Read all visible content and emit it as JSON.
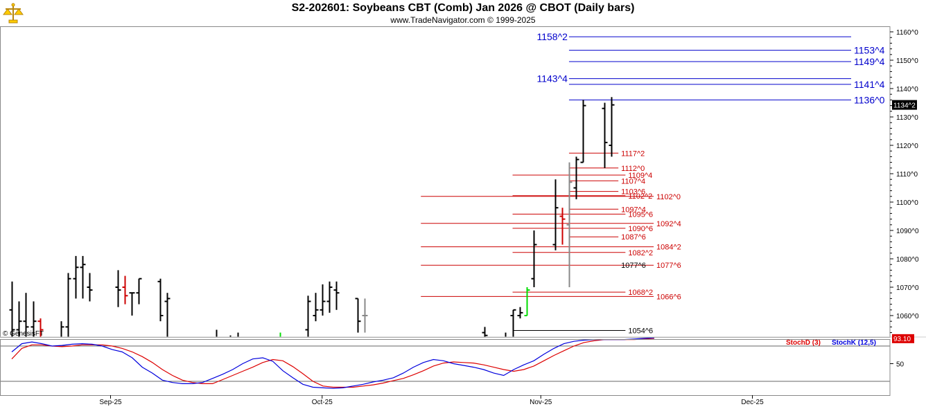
{
  "header": {
    "title": "S2-202601:  Soybeans CBT (Comb) Jan 2026 @ CBOT  (Daily bars)",
    "subtitle": "www.TradeNavigator.com © 1999-2025",
    "logo_icon": "trade-navigator-scales-logo"
  },
  "watermark": "© GenesisFT",
  "colors": {
    "blue_levels": "#0000cc",
    "red_levels": "#cc0000",
    "black_bars": "#000000",
    "up_bar_green": "#00dd00",
    "stoch_d": "#dd0000",
    "stoch_k": "#0000dd",
    "last_price_bg": "#000000",
    "stoch_value_bg": "#dd0000"
  },
  "chart_data": [
    {
      "type": "bar",
      "subtype": "ohlc",
      "title": "S2-202601:  Soybeans CBT (Comb) Jan 2026 @ CBOT  (Daily bars)",
      "ylim": [
        1050,
        1162
      ],
      "y_ticks": [
        "1160^0",
        "1150^0",
        "1140^0",
        "1130^0",
        "1120^0",
        "1110^0",
        "1100^0",
        "1090^0",
        "1080^0",
        "1070^0",
        "1060^0"
      ],
      "x_ticks": [
        "Sep-25",
        "Oct-25",
        "Nov-25",
        "Dec-25"
      ],
      "last_price_label": "1134^2",
      "last_price": 1134.25,
      "bars": [
        {
          "d": "2025-08-18",
          "o": 1062,
          "h": 1072,
          "l": 1049,
          "c": 1055,
          "col": "k"
        },
        {
          "d": "2025-08-19",
          "o": 1055,
          "h": 1065,
          "l": 1048,
          "c": 1058,
          "col": "k"
        },
        {
          "d": "2025-08-20",
          "o": 1058,
          "h": 1068,
          "l": 1050,
          "c": 1056,
          "col": "k"
        },
        {
          "d": "2025-08-21",
          "o": 1056,
          "h": 1065,
          "l": 1046,
          "c": 1058,
          "col": "k"
        },
        {
          "d": "2025-08-22",
          "o": 1058,
          "h": 1059,
          "l": 1050,
          "c": 1055,
          "col": "r"
        },
        {
          "d": "2025-08-25",
          "o": 1050,
          "h": 1058,
          "l": 1045,
          "c": 1056,
          "col": "k"
        },
        {
          "d": "2025-08-26",
          "o": 1056,
          "h": 1075,
          "l": 1050,
          "c": 1073,
          "col": "k"
        },
        {
          "d": "2025-08-27",
          "o": 1073,
          "h": 1081,
          "l": 1066,
          "c": 1077,
          "col": "k"
        },
        {
          "d": "2025-08-28",
          "o": 1077,
          "h": 1081,
          "l": 1066,
          "c": 1078,
          "col": "k"
        },
        {
          "d": "2025-08-29",
          "o": 1070,
          "h": 1075,
          "l": 1065,
          "c": 1069,
          "col": "k"
        },
        {
          "d": "2025-09-02",
          "o": 1070,
          "h": 1076,
          "l": 1063,
          "c": 1069,
          "col": "k"
        },
        {
          "d": "2025-09-03",
          "o": 1070,
          "h": 1074,
          "l": 1064,
          "c": 1067,
          "col": "r"
        },
        {
          "d": "2025-09-04",
          "o": 1068,
          "h": 1068,
          "l": 1060,
          "c": 1068,
          "col": "k"
        },
        {
          "d": "2025-09-05",
          "o": 1068,
          "h": 1073,
          "l": 1064,
          "c": 1073,
          "col": "k"
        },
        {
          "d": "2025-09-08",
          "o": 1072,
          "h": 1073,
          "l": 1058,
          "c": 1060,
          "col": "k"
        },
        {
          "d": "2025-09-09",
          "o": 1065,
          "h": 1068,
          "l": 1040,
          "c": 1066,
          "col": "k"
        },
        {
          "d": "2025-09-16",
          "o": 1052,
          "h": 1055,
          "l": 1045,
          "c": 1048,
          "col": "k"
        },
        {
          "d": "2025-09-18",
          "o": 1050,
          "h": 1053,
          "l": 1045,
          "c": 1049,
          "col": "k"
        },
        {
          "d": "2025-09-19",
          "o": 1051,
          "h": 1054,
          "l": 1046,
          "c": 1052,
          "col": "k"
        },
        {
          "d": "2025-09-25",
          "o": 1050,
          "h": 1054,
          "l": 1045,
          "c": 1052,
          "col": "g"
        },
        {
          "d": "2025-09-26",
          "o": 1051,
          "h": 1052,
          "l": 1040,
          "c": 1051,
          "col": "k"
        },
        {
          "d": "2025-09-29",
          "o": 1055,
          "h": 1067,
          "l": 1050,
          "c": 1065,
          "col": "k"
        },
        {
          "d": "2025-09-30",
          "o": 1060,
          "h": 1068,
          "l": 1058,
          "c": 1062,
          "col": "k"
        },
        {
          "d": "2025-10-01",
          "o": 1062,
          "h": 1071,
          "l": 1060,
          "c": 1065,
          "col": "k"
        },
        {
          "d": "2025-10-02",
          "o": 1065,
          "h": 1072,
          "l": 1061,
          "c": 1070,
          "col": "k"
        },
        {
          "d": "2025-10-03",
          "o": 1069,
          "h": 1072,
          "l": 1062,
          "c": 1068,
          "col": "k"
        },
        {
          "d": "2025-10-06",
          "o": 1066,
          "h": 1066,
          "l": 1054,
          "c": 1058,
          "col": "k"
        },
        {
          "d": "2025-10-07",
          "o": 1060,
          "h": 1066,
          "l": 1054,
          "c": 1060,
          "col": "x"
        },
        {
          "d": "2025-10-24",
          "o": 1054,
          "h": 1056,
          "l": 1050,
          "c": 1053,
          "col": "k"
        },
        {
          "d": "2025-10-27",
          "o": 1052,
          "h": 1054,
          "l": 1045,
          "c": 1050,
          "col": "k"
        },
        {
          "d": "2025-10-28",
          "o": 1060,
          "h": 1062,
          "l": 1050,
          "c": 1062,
          "col": "k"
        },
        {
          "d": "2025-10-29",
          "o": 1060,
          "h": 1063,
          "l": 1059,
          "c": 1061,
          "col": "k"
        },
        {
          "d": "2025-10-30",
          "o": 1060,
          "h": 1070,
          "l": 1060,
          "c": 1069,
          "col": "g"
        },
        {
          "d": "2025-10-31",
          "o": 1073,
          "h": 1090,
          "l": 1070,
          "c": 1085,
          "col": "k"
        },
        {
          "d": "2025-11-03",
          "o": 1085,
          "h": 1108,
          "l": 1083,
          "c": 1098,
          "col": "k"
        },
        {
          "d": "2025-11-04",
          "o": 1095,
          "h": 1098,
          "l": 1085,
          "c": 1094,
          "col": "r"
        },
        {
          "d": "2025-11-05",
          "o": 1092,
          "h": 1114,
          "l": 1070,
          "c": 1107,
          "col": "x"
        },
        {
          "d": "2025-11-06",
          "o": 1105,
          "h": 1116,
          "l": 1101,
          "c": 1115,
          "col": "k"
        },
        {
          "d": "2025-11-07",
          "o": 1114,
          "h": 1136,
          "l": 1114,
          "c": 1134,
          "col": "k"
        },
        {
          "d": "2025-11-10",
          "o": 1133,
          "h": 1135,
          "l": 1112,
          "c": 1121,
          "col": "k"
        },
        {
          "d": "2025-11-11",
          "o": 1120,
          "h": 1137,
          "l": 1116,
          "c": 1134.25,
          "col": "k"
        }
      ],
      "levels": [
        {
          "label": "1158^2",
          "value": 1158.25,
          "color": "blue",
          "x0": "2025-11-05",
          "x1": "2025-12-15",
          "label_side": "left"
        },
        {
          "label": "1153^4",
          "value": 1153.5,
          "color": "blue",
          "x0": "2025-11-05",
          "x1": "2025-12-15",
          "label_side": "right"
        },
        {
          "label": "1149^4",
          "value": 1149.5,
          "color": "blue",
          "x0": "2025-11-05",
          "x1": "2025-12-15",
          "label_side": "right"
        },
        {
          "label": "1143^4",
          "value": 1143.5,
          "color": "blue",
          "x0": "2025-11-05",
          "x1": "2025-12-15",
          "label_side": "left"
        },
        {
          "label": "1141^4",
          "value": 1141.5,
          "color": "blue",
          "x0": "2025-11-05",
          "x1": "2025-12-15",
          "label_side": "right"
        },
        {
          "label": "1136^0",
          "value": 1136.0,
          "color": "blue",
          "x0": "2025-11-05",
          "x1": "2025-12-15",
          "label_side": "right"
        },
        {
          "label": "1117^2",
          "value": 1117.25,
          "color": "red",
          "x0": "2025-11-05",
          "x1": "2025-11-12",
          "label_side": "right"
        },
        {
          "label": "1112^0",
          "value": 1112.0,
          "color": "red",
          "x0": "2025-11-05",
          "x1": "2025-11-12",
          "label_side": "right"
        },
        {
          "label": "1109^4",
          "value": 1109.5,
          "color": "red",
          "x0": "2025-10-28",
          "x1": "2025-11-13",
          "label_side": "right"
        },
        {
          "label": "1107^4",
          "value": 1107.5,
          "color": "red",
          "x0": "2025-11-05",
          "x1": "2025-11-12",
          "label_side": "right"
        },
        {
          "label": "1103^6",
          "value": 1103.75,
          "color": "red",
          "x0": "2025-11-05",
          "x1": "2025-11-12",
          "label_side": "right"
        },
        {
          "label": "1102^2",
          "value": 1102.25,
          "color": "red",
          "x0": "2025-10-28",
          "x1": "2025-11-13",
          "label_side": "right"
        },
        {
          "label": "1102^0",
          "value": 1102.0,
          "color": "red",
          "x0": "2025-10-15",
          "x1": "2025-11-17",
          "label_side": "right"
        },
        {
          "label": "1097^4",
          "value": 1097.5,
          "color": "red",
          "x0": "2025-11-05",
          "x1": "2025-11-12",
          "label_side": "right"
        },
        {
          "label": "1095^6",
          "value": 1095.75,
          "color": "red",
          "x0": "2025-10-28",
          "x1": "2025-11-13",
          "label_side": "right"
        },
        {
          "label": "1092^4",
          "value": 1092.5,
          "color": "red",
          "x0": "2025-10-15",
          "x1": "2025-11-17",
          "label_side": "right"
        },
        {
          "label": "1090^6",
          "value": 1090.75,
          "color": "red",
          "x0": "2025-10-28",
          "x1": "2025-11-13",
          "label_side": "right"
        },
        {
          "label": "1087^6",
          "value": 1087.75,
          "color": "red",
          "x0": "2025-11-05",
          "x1": "2025-11-12",
          "label_side": "right"
        },
        {
          "label": "1084^2",
          "value": 1084.25,
          "color": "red",
          "x0": "2025-10-15",
          "x1": "2025-11-17",
          "label_side": "right"
        },
        {
          "label": "1082^2",
          "value": 1082.25,
          "color": "red",
          "x0": "2025-10-28",
          "x1": "2025-11-13",
          "label_side": "right"
        },
        {
          "label": "1077^6",
          "value": 1077.75,
          "color": "red",
          "x0": "2025-10-15",
          "x1": "2025-11-17",
          "label_side": "right"
        },
        {
          "label": "1077^6",
          "value": 1077.75,
          "color": "black",
          "x0": "2025-11-12",
          "x1": "2025-11-12",
          "label_side": "right"
        },
        {
          "label": "1068^2",
          "value": 1068.25,
          "color": "red",
          "x0": "2025-10-28",
          "x1": "2025-11-13",
          "label_side": "right"
        },
        {
          "label": "1066^6",
          "value": 1066.75,
          "color": "red",
          "x0": "2025-10-15",
          "x1": "2025-11-17",
          "label_side": "right"
        },
        {
          "label": "1054^6",
          "value": 1054.75,
          "color": "black",
          "x0": "2025-10-28",
          "x1": "2025-11-13",
          "label_side": "right"
        }
      ]
    },
    {
      "type": "line",
      "subtype": "stochastic",
      "ylim": [
        0,
        100
      ],
      "y_ticks": [
        "50"
      ],
      "reference_lines": [
        80,
        20
      ],
      "current_value_label": "93.10",
      "series": [
        {
          "name": "StochD (3)",
          "color": "red",
          "values": [
            58,
            76,
            82,
            82,
            80,
            79,
            80,
            82,
            82,
            82,
            80,
            76,
            70,
            62,
            52,
            40,
            30,
            22,
            18,
            16,
            16,
            23,
            30,
            37,
            44,
            52,
            57,
            55,
            45,
            33,
            20,
            12,
            10,
            10,
            10,
            12,
            14,
            17,
            21,
            25,
            31,
            38,
            46,
            51,
            53,
            52,
            51,
            48,
            44,
            40,
            37,
            40,
            46,
            55,
            64,
            72,
            80,
            86,
            89,
            91,
            91,
            91,
            91,
            92,
            93.1
          ]
        },
        {
          "name": "StochK (12,5)",
          "color": "blue",
          "values": [
            70,
            84,
            87,
            84,
            80,
            81,
            83,
            84,
            83,
            80,
            74,
            70,
            60,
            44,
            34,
            22,
            18,
            16,
            16,
            18,
            25,
            32,
            40,
            50,
            58,
            60,
            54,
            38,
            26,
            15,
            10,
            9,
            8,
            9,
            12,
            15,
            19,
            22,
            26,
            34,
            44,
            52,
            57,
            55,
            50,
            47,
            44,
            40,
            34,
            30,
            40,
            48,
            55,
            66,
            76,
            84,
            88,
            90,
            91,
            91,
            91,
            91,
            92,
            93,
            94
          ]
        }
      ],
      "legend": [
        "StochD (3)",
        "StochK (12,5)"
      ]
    }
  ]
}
